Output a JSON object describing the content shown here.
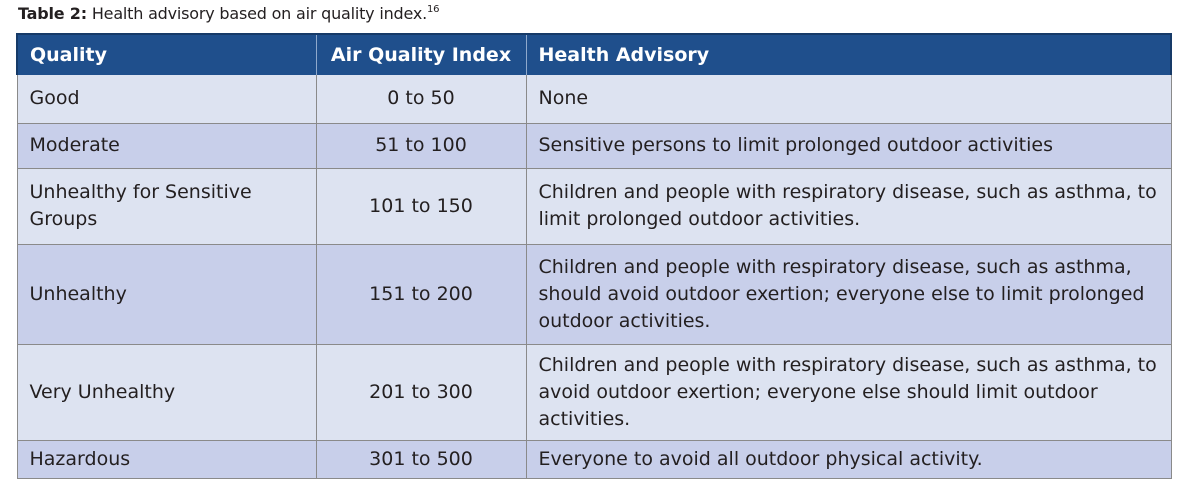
{
  "caption": {
    "label": "Table 2:",
    "text": " Health advisory based on air quality index.",
    "footnote": "16"
  },
  "table": {
    "headers": {
      "quality": "Quality",
      "aqi": "Air Quality Index",
      "advisory": "Health Advisory"
    },
    "rows": [
      {
        "quality": "Good",
        "aqi": "0 to 50",
        "advisory": "None"
      },
      {
        "quality": "Moderate",
        "aqi": "51 to 100",
        "advisory": "Sensitive persons to limit prolonged outdoor activities"
      },
      {
        "quality": "Unhealthy for Sensitive Groups",
        "aqi": "101 to 150",
        "advisory": "Children and people with respiratory disease, such as asthma, to limit prolonged outdoor activities."
      },
      {
        "quality": "Unhealthy",
        "aqi": "151 to 200",
        "advisory": "Children and people with respiratory disease, such as asthma, should avoid outdoor exertion; everyone else to limit prolonged outdoor activities."
      },
      {
        "quality": "Very Unhealthy",
        "aqi": "201 to 300",
        "advisory": "Children and people with respiratory disease, such as asthma, to avoid outdoor exertion; everyone else should limit outdoor activities."
      },
      {
        "quality": "Hazardous",
        "aqi": "301 to 500",
        "advisory": "Everyone to avoid all outdoor physical activity."
      }
    ]
  },
  "colors": {
    "header_bg": "#1f4f8c",
    "row_light": "#dde3f1",
    "row_dark": "#c8cfea"
  }
}
